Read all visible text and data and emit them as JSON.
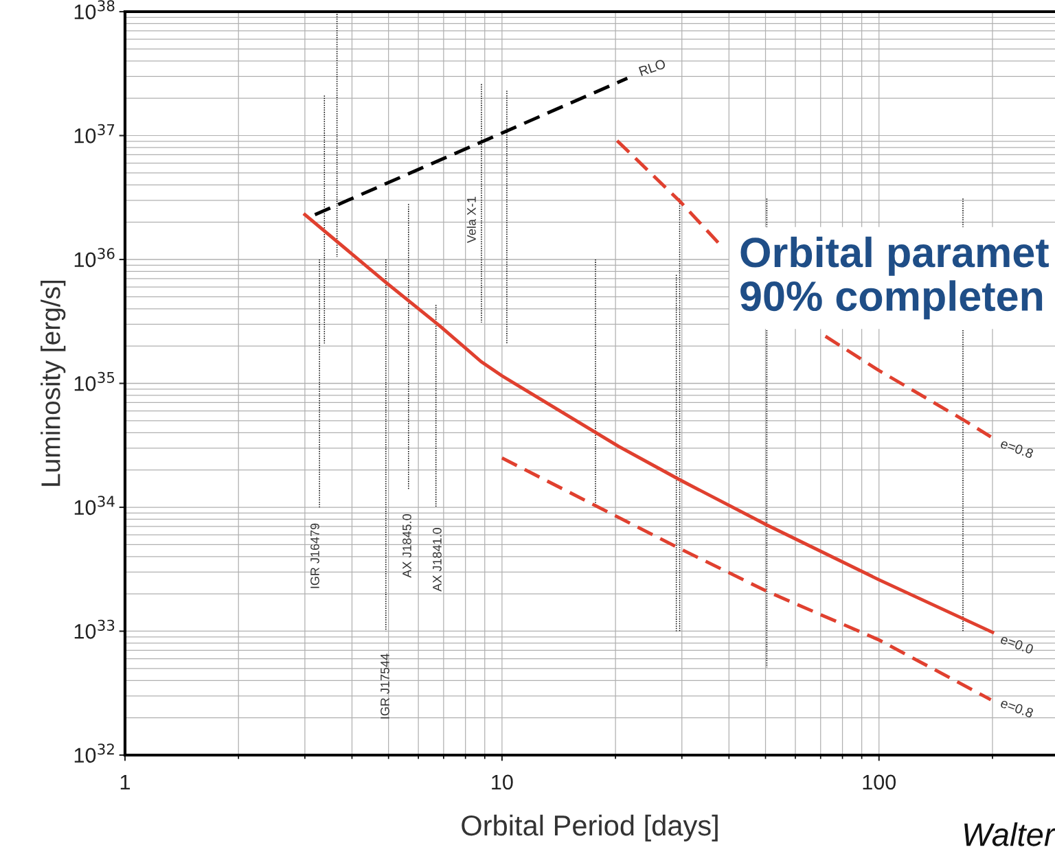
{
  "chart_data": {
    "type": "line",
    "xlabel": "Orbital Period [days]",
    "ylabel": "Luminosity [erg/s]",
    "log": "xy",
    "grid": true,
    "xlim": [
      1,
      293
    ],
    "xticks": [
      1,
      10,
      100
    ],
    "ylim": [
      1e+32,
      1e+38
    ],
    "yticks": [
      {
        "value": 1e+32,
        "label": "10$^{32}$"
      },
      {
        "value": 1e+33,
        "label": "10$^{33}$"
      },
      {
        "value": 1e+34,
        "label": "10$^{34}$"
      },
      {
        "value": 1e+35,
        "label": "10$^{35}$"
      },
      {
        "value": 1e+36,
        "label": "10$^{36}$"
      },
      {
        "value": 1e+37,
        "label": "10$^{37}$"
      },
      {
        "value": 1e+38,
        "label": "10$^{38}$"
      }
    ],
    "series": [
      {
        "color": "#000000",
        "line_style": "dashed",
        "x": [
          3.19,
          21.5
        ],
        "values": [
          2.3e+36,
          2.9e+37
        ]
      },
      {
        "color": "#e0402f",
        "line_style": "solid",
        "x": [
          3.0,
          4.9,
          6.85,
          8.8,
          10,
          20.4,
          29.8,
          50.4,
          100,
          200
        ],
        "values": [
          2.3e+36,
          6.6e+35,
          2.9e+35,
          1.5e+35,
          1.15e+35,
          3.1e+34,
          1.65e+34,
          7.2e+33,
          2.6e+33,
          9.8e+32
        ]
      },
      {
        "color": "#e0402f",
        "line_style": "dashed",
        "x": [
          10,
          29.8,
          50.4,
          100,
          198
        ],
        "values": [
          2.5e+34,
          4.6e+33,
          2.1e+33,
          8.5e+32,
          2.8e+32
        ]
      },
      {
        "color": "#e0402f",
        "line_style": "dashed",
        "x": [
          20.2,
          29.8,
          38.4,
          55,
          72.1,
          100,
          167,
          198
        ],
        "values": [
          9.1e+36,
          2.9e+36,
          1.26e+36,
          null,
          2.4e+35,
          1.27e+35,
          5.1e+34,
          3.7e+34
        ]
      },
      {
        "color": "#000000",
        "line_style": "dotted",
        "x": [
          3.28,
          3.28,
          3.3,
          3.38,
          3.38,
          3.5,
          3.65,
          3.65,
          4.3,
          4.92,
          4.92,
          5.3,
          5.65,
          5.65,
          6.2,
          6.68,
          6.68,
          7.7,
          8.82,
          8.82,
          9.5,
          10.3,
          10.3,
          14,
          17.7,
          17.7,
          23,
          29.0,
          29.0,
          29.3,
          29.6,
          29.6,
          40,
          50.4,
          50.4,
          90,
          167,
          167
        ],
        "values": [
          1e+36,
          1e+34,
          null,
          2.1e+37,
          2.1e+35,
          null,
          1e+38,
          1.05e+36,
          null,
          1e+36,
          1e+33,
          null,
          2.8e+36,
          1.4e+34,
          null,
          4.3e+35,
          1e+34,
          null,
          2.6e+37,
          3.1e+35,
          null,
          2.3e+37,
          2.1e+35,
          null,
          1e+36,
          1e+34,
          null,
          7.5e+35,
          1e+33,
          null,
          3.1e+36,
          1e+33,
          null,
          3.1e+36,
          5.1e+32,
          null,
          3.1e+36,
          1e+33
        ]
      }
    ],
    "annotations": [
      "RLO",
      "e=0.8",
      "e=0.0",
      "e=0.8",
      "Vela X-1",
      "IGR J16479",
      "IGR J17544",
      "AX J1845.0",
      "AX J1841.0",
      "Orbital paramet\n90% completen",
      "Walter"
    ]
  }
}
